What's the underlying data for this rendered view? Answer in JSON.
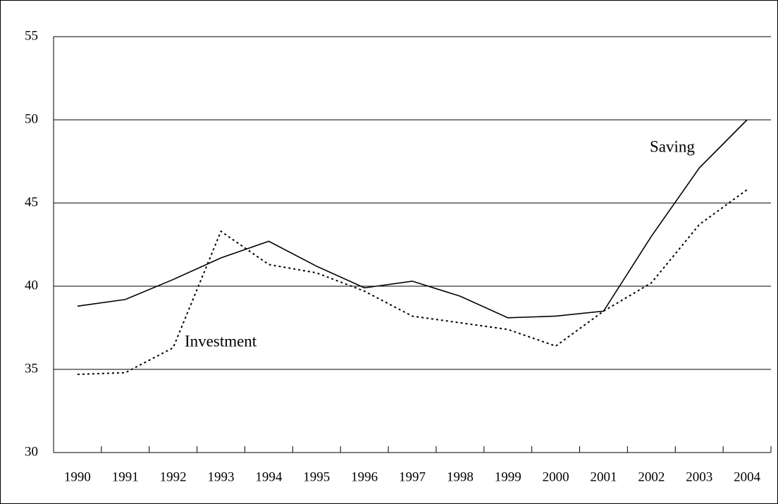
{
  "chart_data": {
    "type": "line",
    "categories": [
      "1990",
      "1991",
      "1992",
      "1993",
      "1994",
      "1995",
      "1996",
      "1997",
      "1998",
      "1999",
      "2000",
      "2001",
      "2002",
      "2003",
      "2004"
    ],
    "series": [
      {
        "name": "Saving",
        "color": "#000000",
        "dash": "solid",
        "values": [
          38.8,
          39.2,
          40.4,
          41.7,
          42.7,
          41.2,
          39.9,
          40.3,
          39.4,
          38.1,
          38.2,
          38.5,
          43.0,
          47.1,
          50.0
        ]
      },
      {
        "name": "Investment",
        "color": "#000000",
        "dash": "dotted",
        "values": [
          34.7,
          34.8,
          36.3,
          43.3,
          41.3,
          40.8,
          39.7,
          38.2,
          37.8,
          37.4,
          36.4,
          38.5,
          40.2,
          43.7,
          45.8
        ]
      }
    ],
    "ylim": [
      30,
      55
    ],
    "yticks": [
      30,
      35,
      40,
      45,
      50,
      55
    ],
    "grid": true
  }
}
